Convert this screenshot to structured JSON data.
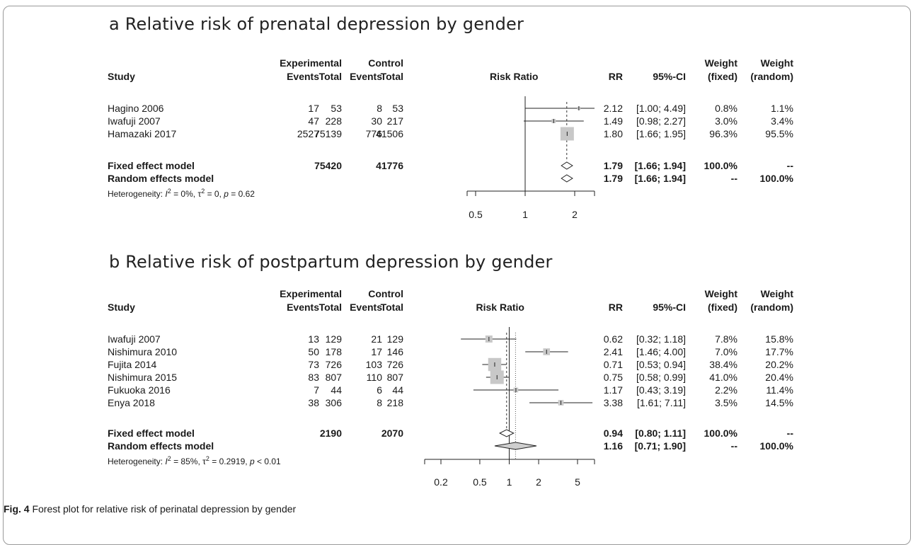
{
  "caption": {
    "label": "Fig. 4",
    "text": "Forest plot for relative risk of perinatal depression by gender"
  },
  "headers": {
    "experimental": "Experimental",
    "control": "Control",
    "study": "Study",
    "events": "Events",
    "total": "Total",
    "risk_ratio": "Risk Ratio",
    "rr": "RR",
    "ci": "95%-CI",
    "weight": "Weight",
    "fixed": "(fixed)",
    "random": "(random)"
  },
  "chart_data": [
    {
      "type": "forest",
      "title": "a Relative risk of prenatal depression by gender",
      "ticks": [
        0.5,
        1,
        2
      ],
      "tick_labels": [
        "0.5",
        "1",
        "2"
      ],
      "xlim": [
        0.5,
        2
      ],
      "log_scale": true,
      "studies": [
        {
          "name": "Hagino 2006",
          "e_events": "17",
          "e_total": "53",
          "c_events": "8",
          "c_total": "53",
          "rr": 2.12,
          "lo": 1.0,
          "hi": 4.49,
          "rr_text": "2.12",
          "ci_text": "[1.00; 4.49]",
          "w_fixed": "0.8%",
          "w_random": "1.1%",
          "wf": 0.8
        },
        {
          "name": "Iwafuji 2007",
          "e_events": "47",
          "e_total": "228",
          "c_events": "30",
          "c_total": "217",
          "rr": 1.49,
          "lo": 0.98,
          "hi": 2.27,
          "rr_text": "1.49",
          "ci_text": "[0.98; 2.27]",
          "w_fixed": "3.0%",
          "w_random": "3.4%",
          "wf": 3.0
        },
        {
          "name": "Hamazaki 2017",
          "e_events": "2527",
          "e_total": "75139",
          "c_events": "776",
          "c_total": "41506",
          "rr": 1.8,
          "lo": 1.66,
          "hi": 1.95,
          "rr_text": "1.80",
          "ci_text": "[1.66; 1.95]",
          "w_fixed": "96.3%",
          "w_random": "95.5%",
          "wf": 96.3
        }
      ],
      "fixed": {
        "label": "Fixed effect model",
        "e_total": "75420",
        "c_total": "41776",
        "rr": 1.79,
        "lo": 1.66,
        "hi": 1.94,
        "rr_text": "1.79",
        "ci_text": "[1.66; 1.94]",
        "w_fixed": "100.0%",
        "w_random": "--"
      },
      "random": {
        "label": "Random effects model",
        "rr": 1.79,
        "lo": 1.66,
        "hi": 1.94,
        "rr_text": "1.79",
        "ci_text": "[1.66; 1.94]",
        "w_fixed": "--",
        "w_random": "100.0%"
      },
      "heterogeneity": {
        "prefix": "Heterogeneity: ",
        "i2": "= 0%, ",
        "tau2": "= 0, ",
        "p": "= 0.62"
      }
    },
    {
      "type": "forest",
      "title": "b Relative risk of postpartum depression by gender",
      "ticks": [
        0.2,
        0.5,
        1,
        2,
        5
      ],
      "tick_labels": [
        "0.2",
        "0.5",
        "1",
        "2",
        "5"
      ],
      "xlim": [
        0.2,
        5
      ],
      "log_scale": true,
      "studies": [
        {
          "name": "Iwafuji 2007",
          "e_events": "13",
          "e_total": "129",
          "c_events": "21",
          "c_total": "129",
          "rr": 0.62,
          "lo": 0.32,
          "hi": 1.18,
          "rr_text": "0.62",
          "ci_text": "[0.32; 1.18]",
          "w_fixed": "7.8%",
          "w_random": "15.8%",
          "wf": 7.8
        },
        {
          "name": "Nishimura 2010",
          "e_events": "50",
          "e_total": "178",
          "c_events": "17",
          "c_total": "146",
          "rr": 2.41,
          "lo": 1.46,
          "hi": 4.0,
          "rr_text": "2.41",
          "ci_text": "[1.46; 4.00]",
          "w_fixed": "7.0%",
          "w_random": "17.7%",
          "wf": 7.0
        },
        {
          "name": "Fujita 2014",
          "e_events": "73",
          "e_total": "726",
          "c_events": "103",
          "c_total": "726",
          "rr": 0.71,
          "lo": 0.53,
          "hi": 0.94,
          "rr_text": "0.71",
          "ci_text": "[0.53; 0.94]",
          "w_fixed": "38.4%",
          "w_random": "20.2%",
          "wf": 38.4
        },
        {
          "name": "Nishimura 2015",
          "e_events": "83",
          "e_total": "807",
          "c_events": "110",
          "c_total": "807",
          "rr": 0.75,
          "lo": 0.58,
          "hi": 0.99,
          "rr_text": "0.75",
          "ci_text": "[0.58; 0.99]",
          "w_fixed": "41.0%",
          "w_random": "20.4%",
          "wf": 41.0
        },
        {
          "name": "Fukuoka 2016",
          "e_events": "7",
          "e_total": "44",
          "c_events": "6",
          "c_total": "44",
          "rr": 1.17,
          "lo": 0.43,
          "hi": 3.19,
          "rr_text": "1.17",
          "ci_text": "[0.43; 3.19]",
          "w_fixed": "2.2%",
          "w_random": "11.4%",
          "wf": 2.2
        },
        {
          "name": "Enya 2018",
          "e_events": "38",
          "e_total": "306",
          "c_events": "8",
          "c_total": "218",
          "rr": 3.38,
          "lo": 1.61,
          "hi": 7.11,
          "rr_text": "3.38",
          "ci_text": "[1.61; 7.11]",
          "w_fixed": "3.5%",
          "w_random": "14.5%",
          "wf": 3.5
        }
      ],
      "fixed": {
        "label": "Fixed effect model",
        "e_total": "2190",
        "c_total": "2070",
        "rr": 0.94,
        "lo": 0.8,
        "hi": 1.11,
        "rr_text": "0.94",
        "ci_text": "[0.80; 1.11]",
        "w_fixed": "100.0%",
        "w_random": "--"
      },
      "random": {
        "label": "Random effects model",
        "rr": 1.16,
        "lo": 0.71,
        "hi": 1.9,
        "rr_text": "1.16",
        "ci_text": "[0.71; 1.90]",
        "w_fixed": "--",
        "w_random": "100.0%"
      },
      "heterogeneity": {
        "prefix": "Heterogeneity: ",
        "i2": "= 85%, ",
        "tau2": "= 0.2919, ",
        "p": "< 0.01"
      }
    }
  ]
}
